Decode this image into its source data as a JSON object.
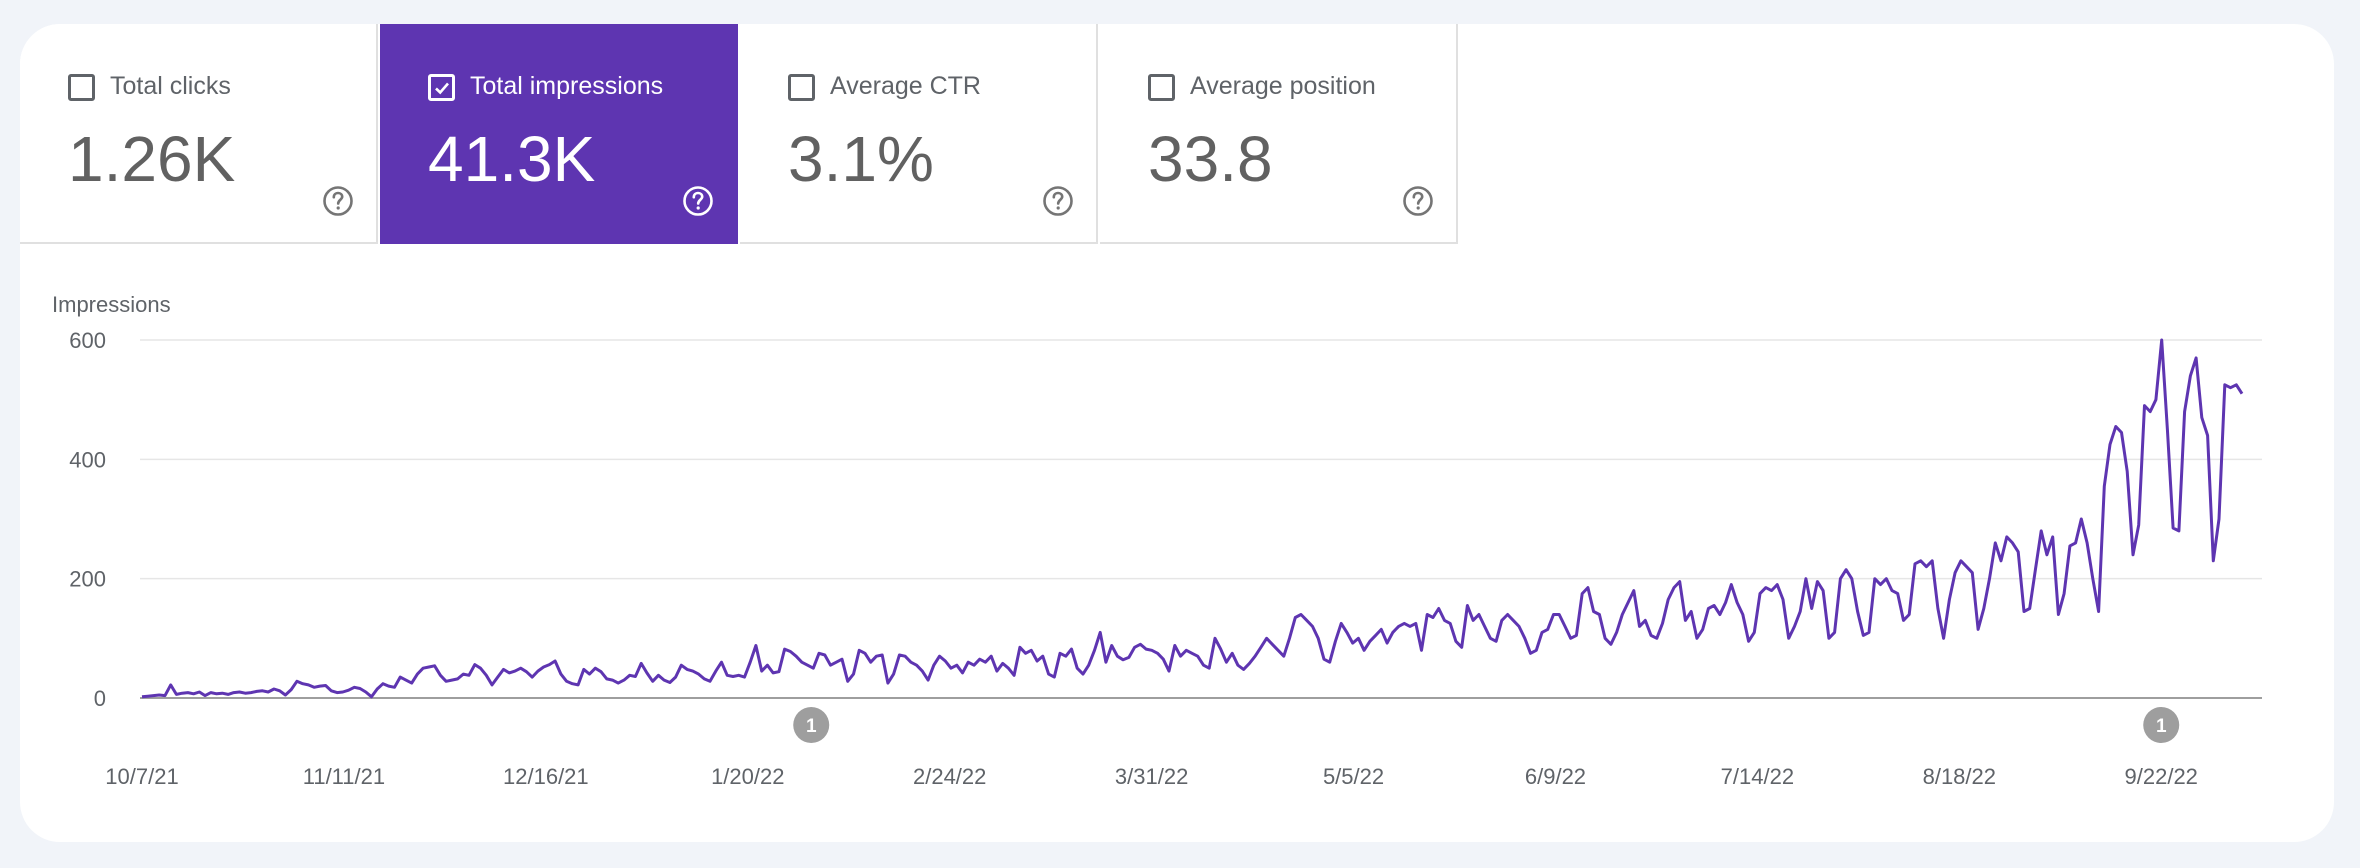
{
  "metrics": [
    {
      "label": "Total clicks",
      "value": "1.26K",
      "checked": false
    },
    {
      "label": "Total impressions",
      "value": "41.3K",
      "checked": true
    },
    {
      "label": "Average CTR",
      "value": "3.1%",
      "checked": false
    },
    {
      "label": "Average position",
      "value": "33.8",
      "checked": false
    }
  ],
  "colors": {
    "accent": "#5e35b1",
    "line": "#5e35b1",
    "annotation": "#9e9e9e"
  },
  "chart_data": {
    "type": "line",
    "ylabel": "Impressions",
    "ylim": [
      0,
      600
    ],
    "yticks": [
      "0",
      "200",
      "400",
      "600"
    ],
    "xticks": [
      "10/7/21",
      "11/11/21",
      "12/16/21",
      "1/20/22",
      "2/24/22",
      "3/31/22",
      "5/5/22",
      "6/9/22",
      "7/14/22",
      "8/18/22",
      "9/22/22"
    ],
    "x_start": "10/7/21",
    "x_end": "10/6/22",
    "grid": true,
    "annotations": [
      {
        "date": "1/31/22",
        "label": "1"
      },
      {
        "date": "9/22/22",
        "label": "1"
      }
    ],
    "series": [
      {
        "values": [
          2,
          3,
          4,
          5,
          4,
          22,
          6,
          8,
          9,
          7,
          10,
          4,
          9,
          7,
          8,
          6,
          9,
          10,
          8,
          9,
          11,
          12,
          10,
          15,
          12,
          5,
          14,
          28,
          24,
          22,
          18,
          20,
          21,
          12,
          9,
          10,
          13,
          18,
          16,
          10,
          2,
          15,
          24,
          20,
          18,
          35,
          30,
          25,
          40,
          50,
          52,
          54,
          38,
          28,
          30,
          32,
          40,
          38,
          56,
          50,
          38,
          22,
          35,
          48,
          42,
          45,
          50,
          44,
          35,
          45,
          52,
          56,
          62,
          40,
          28,
          24,
          22,
          48,
          40,
          50,
          44,
          32,
          30,
          25,
          30,
          38,
          36,
          58,
          42,
          28,
          38,
          30,
          26,
          35,
          55,
          48,
          45,
          40,
          32,
          28,
          45,
          60,
          38,
          36,
          38,
          35,
          60,
          88,
          45,
          55,
          42,
          44,
          82,
          78,
          70,
          60,
          55,
          50,
          75,
          72,
          55,
          60,
          65,
          28,
          40,
          80,
          75,
          60,
          70,
          72,
          25,
          40,
          72,
          70,
          60,
          55,
          45,
          30,
          55,
          70,
          62,
          50,
          55,
          42,
          60,
          55,
          65,
          60,
          70,
          45,
          58,
          50,
          38,
          85,
          75,
          80,
          62,
          70,
          40,
          35,
          75,
          70,
          82,
          50,
          40,
          55,
          80,
          110,
          60,
          88,
          70,
          64,
          68,
          85,
          90,
          82,
          80,
          75,
          65,
          45,
          88,
          70,
          80,
          75,
          70,
          55,
          50,
          100,
          82,
          60,
          75,
          55,
          48,
          58,
          70,
          85,
          100,
          90,
          80,
          70,
          100,
          135,
          140,
          130,
          120,
          100,
          65,
          60,
          95,
          125,
          110,
          92,
          100,
          80,
          95,
          105,
          115,
          92,
          110,
          120,
          125,
          120,
          125,
          80,
          140,
          135,
          150,
          130,
          125,
          95,
          85,
          155,
          130,
          140,
          120,
          100,
          95,
          130,
          140,
          130,
          120,
          100,
          75,
          80,
          110,
          115,
          140,
          140,
          120,
          100,
          105,
          175,
          185,
          145,
          140,
          100,
          90,
          110,
          140,
          160,
          180,
          120,
          130,
          105,
          100,
          125,
          165,
          185,
          195,
          130,
          145,
          100,
          115,
          150,
          155,
          140,
          160,
          190,
          160,
          140,
          95,
          110,
          175,
          185,
          180,
          190,
          165,
          100,
          120,
          145,
          200,
          150,
          195,
          180,
          100,
          110,
          200,
          215,
          200,
          145,
          105,
          110,
          200,
          190,
          200,
          180,
          175,
          130,
          140,
          225,
          230,
          220,
          230,
          150,
          100,
          165,
          210,
          230,
          220,
          210,
          115,
          150,
          200,
          260,
          230,
          270,
          260,
          245,
          145,
          150,
          215,
          280,
          240,
          270,
          140,
          175,
          255,
          260,
          300,
          260,
          200,
          145,
          355,
          425,
          455,
          445,
          380,
          240,
          290,
          490,
          480,
          500,
          600,
          450,
          285,
          280,
          480,
          540,
          570,
          470,
          440,
          230,
          300,
          525,
          520,
          525,
          510
        ]
      }
    ]
  }
}
